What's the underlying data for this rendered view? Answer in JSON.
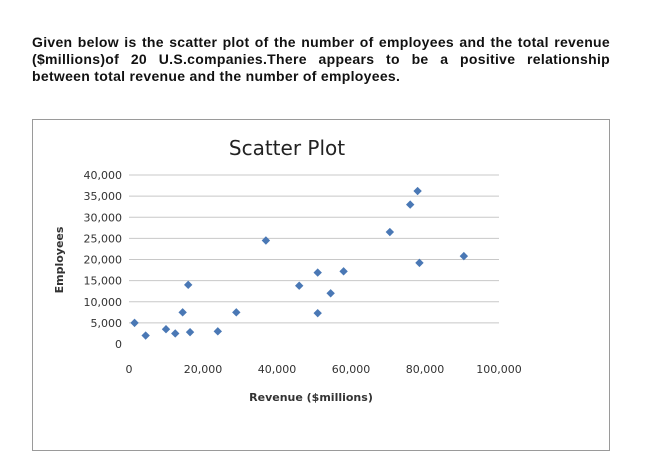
{
  "intro_text": "Given below is the scatter plot of the number of employees and the total revenue ($millions)of 20 U.S.companies.There appears to be a positive relationship between total revenue and the number of employees.",
  "chart_data": {
    "type": "scatter",
    "title": "Scatter Plot",
    "xlabel": "Revenue ($millions)",
    "ylabel": "Employees",
    "xlim": [
      0,
      100000
    ],
    "ylim": [
      0,
      40000
    ],
    "x_ticks": [
      "0",
      "20,000",
      "40,000",
      "60,000",
      "80,000",
      "100,000"
    ],
    "y_ticks": [
      "0",
      "5,000",
      "10,000",
      "15,000",
      "20,000",
      "25,000",
      "30,000",
      "35,000",
      "40,000"
    ],
    "grid": "horizontal",
    "marker_color": "#4a78b5",
    "points": [
      {
        "x": 1500,
        "y": 5000
      },
      {
        "x": 4500,
        "y": 2000
      },
      {
        "x": 10000,
        "y": 3500
      },
      {
        "x": 12500,
        "y": 2500
      },
      {
        "x": 14500,
        "y": 7500
      },
      {
        "x": 16000,
        "y": 14000
      },
      {
        "x": 16500,
        "y": 2800
      },
      {
        "x": 24000,
        "y": 3000
      },
      {
        "x": 29000,
        "y": 7500
      },
      {
        "x": 37000,
        "y": 24500
      },
      {
        "x": 46000,
        "y": 13800
      },
      {
        "x": 51000,
        "y": 7300
      },
      {
        "x": 51000,
        "y": 16900
      },
      {
        "x": 54500,
        "y": 12000
      },
      {
        "x": 58000,
        "y": 17200
      },
      {
        "x": 70500,
        "y": 26500
      },
      {
        "x": 76000,
        "y": 33000
      },
      {
        "x": 78000,
        "y": 36200
      },
      {
        "x": 78500,
        "y": 19200
      },
      {
        "x": 90500,
        "y": 20800
      }
    ]
  }
}
